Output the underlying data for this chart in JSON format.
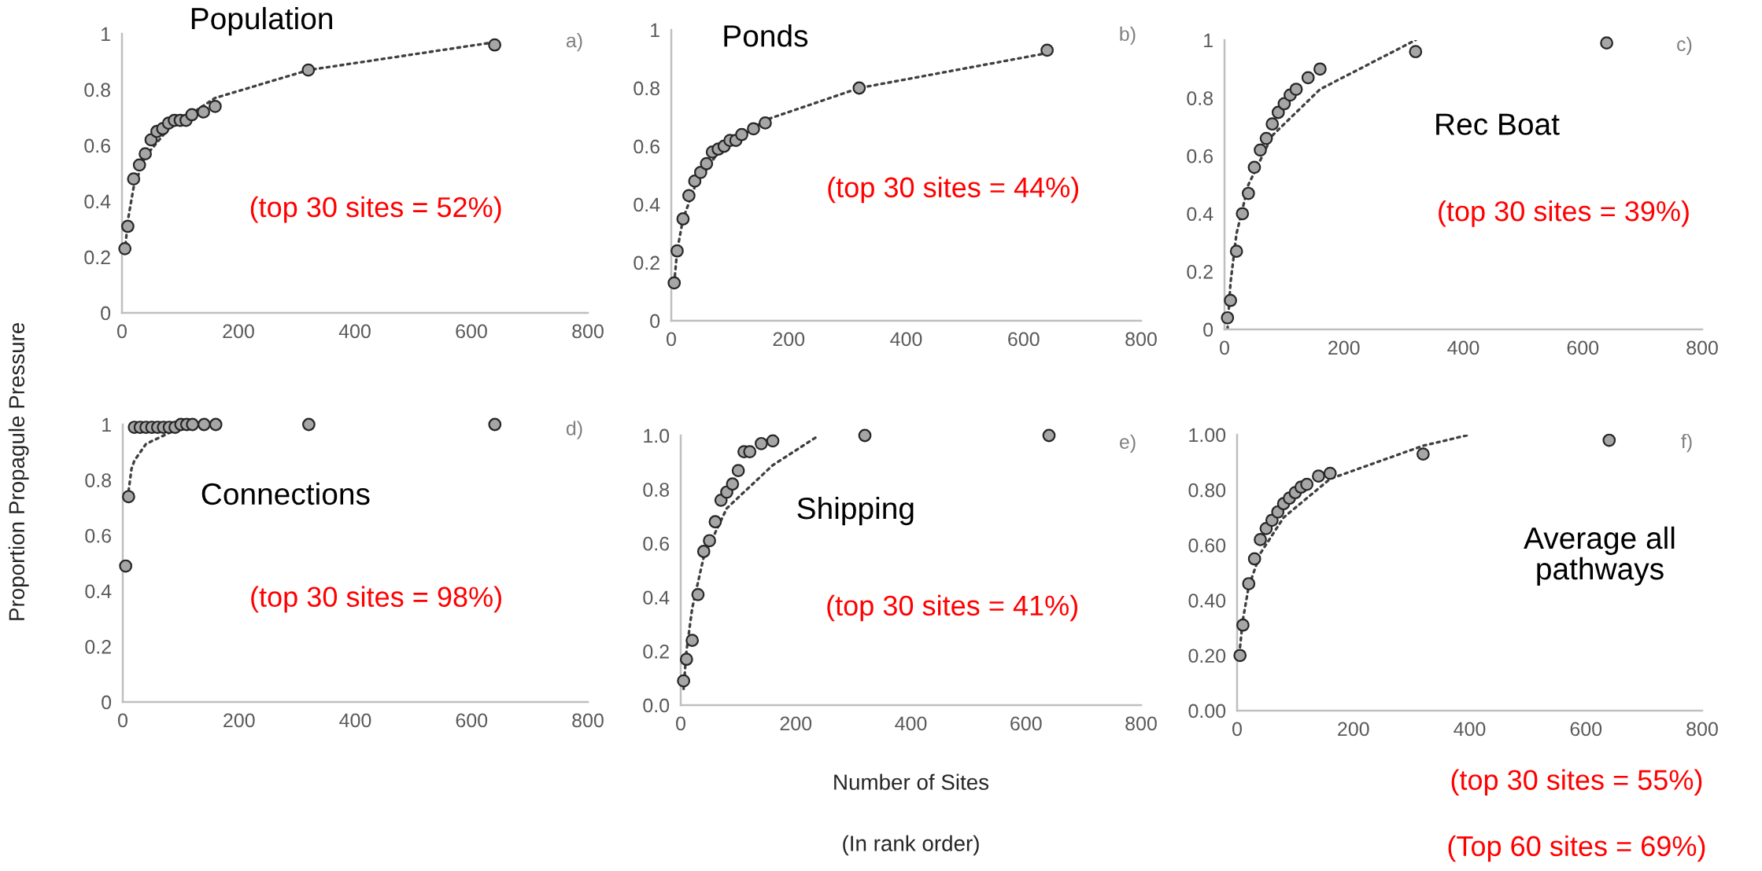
{
  "chart_data": [
    {
      "type": "scatter",
      "title": "Population",
      "ylabel": "Proportion Propagule Pressure",
      "annotations": [
        "a)",
        "(top 30 sites = 52%)"
      ],
      "xlim": [
        0,
        800
      ],
      "ylim": [
        0,
        1
      ],
      "xticks": [
        0,
        200,
        400,
        600,
        800
      ],
      "yticks": [
        0,
        0.2,
        0.4,
        0.6,
        0.8,
        1
      ],
      "grid": false,
      "series": [
        {
          "type": "line",
          "color": "#404040",
          "line_style": "dotted",
          "marker": "none",
          "x": [
            5,
            10,
            20,
            40,
            80,
            160,
            320,
            640
          ],
          "values": [
            0.22,
            0.33,
            0.45,
            0.56,
            0.66,
            0.77,
            0.87,
            0.97
          ]
        },
        {
          "color": "#a6a6a6",
          "marker": "circle",
          "x": [
            5,
            10,
            20,
            30,
            40,
            50,
            60,
            70,
            80,
            90,
            100,
            110,
            120,
            140,
            160,
            320,
            640
          ],
          "values": [
            0.23,
            0.31,
            0.48,
            0.53,
            0.57,
            0.62,
            0.65,
            0.66,
            0.68,
            0.69,
            0.69,
            0.69,
            0.71,
            0.72,
            0.74,
            0.87,
            0.96
          ]
        }
      ]
    },
    {
      "type": "scatter",
      "title": "Ponds",
      "annotations": [
        "b)",
        "(top 30 sites = 44%)"
      ],
      "xlim": [
        0,
        800
      ],
      "ylim": [
        0,
        1
      ],
      "xticks": [
        0,
        200,
        400,
        600,
        800
      ],
      "yticks": [
        0,
        0.2,
        0.4,
        0.6,
        0.8,
        1
      ],
      "grid": false,
      "series": [
        {
          "type": "line",
          "color": "#404040",
          "line_style": "dotted",
          "marker": "none",
          "x": [
            5,
            10,
            20,
            40,
            80,
            160,
            320,
            640
          ],
          "values": [
            0.13,
            0.24,
            0.35,
            0.46,
            0.58,
            0.69,
            0.8,
            0.92
          ]
        },
        {
          "color": "#a6a6a6",
          "marker": "circle",
          "x": [
            5,
            10,
            20,
            30,
            40,
            50,
            60,
            70,
            80,
            90,
            100,
            110,
            120,
            140,
            160,
            320,
            640
          ],
          "values": [
            0.13,
            0.24,
            0.35,
            0.43,
            0.48,
            0.51,
            0.54,
            0.58,
            0.59,
            0.6,
            0.62,
            0.62,
            0.64,
            0.66,
            0.68,
            0.8,
            0.93
          ]
        }
      ]
    },
    {
      "type": "scatter",
      "title": "Rec Boat",
      "annotations": [
        "c)",
        "(top 30 sites = 39%)"
      ],
      "xlim": [
        0,
        800
      ],
      "ylim": [
        0,
        1
      ],
      "xticks": [
        0,
        200,
        400,
        600,
        800
      ],
      "yticks": [
        0,
        0.2,
        0.4,
        0.6,
        0.8,
        1
      ],
      "grid": false,
      "series": [
        {
          "type": "line",
          "color": "#404040",
          "line_style": "dotted",
          "marker": "none",
          "x": [
            5,
            10,
            20,
            40,
            80,
            160,
            320
          ],
          "values": [
            0.0,
            0.16,
            0.33,
            0.5,
            0.67,
            0.83,
            1
          ]
        },
        {
          "color": "#a6a6a6",
          "marker": "circle",
          "x": [
            5,
            10,
            20,
            30,
            40,
            50,
            60,
            70,
            80,
            90,
            100,
            110,
            120,
            140,
            160,
            320,
            640
          ],
          "values": [
            0.04,
            0.1,
            0.27,
            0.4,
            0.47,
            0.56,
            0.62,
            0.66,
            0.71,
            0.75,
            0.78,
            0.81,
            0.83,
            0.87,
            0.9,
            0.96,
            0.99
          ]
        }
      ]
    },
    {
      "type": "scatter",
      "title": "Connections",
      "annotations": [
        "d)",
        "(top 30 sites = 98%)"
      ],
      "xlim": [
        0,
        800
      ],
      "ylim": [
        0,
        1
      ],
      "xticks": [
        0,
        200,
        400,
        600,
        800
      ],
      "yticks": [
        0,
        0.2,
        0.4,
        0.6,
        0.8,
        1
      ],
      "grid": false,
      "series": [
        {
          "type": "line",
          "color": "#404040",
          "line_style": "dotted",
          "marker": "none",
          "x": [
            10,
            15,
            20,
            40,
            80
          ],
          "values": [
            0.76,
            0.84,
            0.87,
            0.93,
            0.97
          ]
        },
        {
          "color": "#a6a6a6",
          "marker": "circle",
          "x": [
            5,
            10,
            20,
            30,
            40,
            50,
            60,
            70,
            80,
            90,
            100,
            110,
            120,
            140,
            160,
            320,
            640
          ],
          "values": [
            0.49,
            0.74,
            0.99,
            0.99,
            0.99,
            0.99,
            0.99,
            0.99,
            0.99,
            0.99,
            1,
            1,
            1,
            1,
            1,
            1,
            1
          ]
        }
      ]
    },
    {
      "type": "scatter",
      "title": "Shipping",
      "xlabel": "Number of Sites",
      "annotations": [
        "e)",
        "(top 30 sites = 41%)",
        "(In rank order)"
      ],
      "xlim": [
        0,
        800
      ],
      "ylim": [
        0,
        1
      ],
      "xticks": [
        0,
        200,
        400,
        600,
        800
      ],
      "yticks": [
        {
          "value": 0,
          "label": "0.0"
        },
        {
          "value": 0.2,
          "label": "0.2"
        },
        {
          "value": 0.4,
          "label": "0.4"
        },
        {
          "value": 0.6,
          "label": "0.6"
        },
        {
          "value": 0.8,
          "label": "0.8"
        },
        {
          "value": 1,
          "label": "1.0"
        }
      ],
      "grid": false,
      "series": [
        {
          "type": "line",
          "color": "#404040",
          "line_style": "dotted",
          "marker": "none",
          "x": [
            5,
            10,
            20,
            40,
            80,
            160,
            240
          ],
          "values": [
            0.06,
            0.2,
            0.36,
            0.55,
            0.73,
            0.89,
            1
          ]
        },
        {
          "color": "#a6a6a6",
          "marker": "circle",
          "x": [
            5,
            10,
            20,
            30,
            40,
            50,
            60,
            70,
            80,
            90,
            100,
            110,
            120,
            140,
            160,
            320,
            640
          ],
          "values": [
            0.09,
            0.17,
            0.24,
            0.41,
            0.57,
            0.61,
            0.68,
            0.76,
            0.79,
            0.82,
            0.87,
            0.94,
            0.94,
            0.97,
            0.98,
            1,
            1
          ]
        }
      ]
    },
    {
      "type": "scatter",
      "title": "Average all pathways",
      "annotations": [
        "f)",
        "(top 30 sites = 55%)",
        "(Top 60 sites = 69%)"
      ],
      "xlim": [
        0,
        800
      ],
      "ylim": [
        0,
        1
      ],
      "xticks": [
        0,
        200,
        400,
        600,
        800
      ],
      "yticks": [
        {
          "value": 0,
          "label": "0.00"
        },
        {
          "value": 0.2,
          "label": "0.20"
        },
        {
          "value": 0.4,
          "label": "0.40"
        },
        {
          "value": 0.6,
          "label": "0.60"
        },
        {
          "value": 0.8,
          "label": "0.80"
        },
        {
          "value": 1,
          "label": "1.00"
        }
      ],
      "grid": false,
      "series": [
        {
          "type": "line",
          "color": "#404040",
          "line_style": "dotted",
          "marker": "none",
          "x": [
            5,
            10,
            20,
            40,
            80,
            160,
            320,
            400
          ],
          "values": [
            0.23,
            0.33,
            0.45,
            0.57,
            0.7,
            0.84,
            0.96,
            1
          ]
        },
        {
          "color": "#a6a6a6",
          "marker": "circle",
          "x": [
            5,
            10,
            20,
            30,
            40,
            50,
            60,
            70,
            80,
            90,
            100,
            110,
            120,
            140,
            160,
            320,
            640
          ],
          "values": [
            0.2,
            0.31,
            0.46,
            0.55,
            0.62,
            0.66,
            0.69,
            0.72,
            0.75,
            0.77,
            0.79,
            0.81,
            0.82,
            0.85,
            0.86,
            0.93,
            0.98
          ]
        }
      ]
    }
  ]
}
